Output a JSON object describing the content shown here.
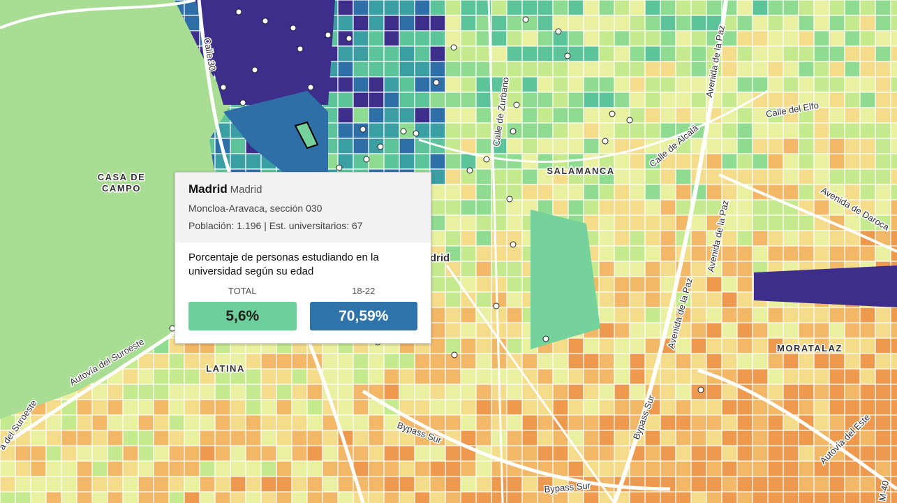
{
  "map": {
    "labels": {
      "calle_30": "Calle 30",
      "casa_de_campo": [
        "CASA DE",
        "CAMPO"
      ],
      "salamanca": "SALAMANCA",
      "latina": "LATINA",
      "moratalaz": "MORATALAZ",
      "madrid": "Madrid",
      "zurbano": "Calle de Zurbano",
      "elfo": "Calle del Elfo",
      "alcala": "Calle de Alcalá",
      "paz": [
        "Avenida de la Paz",
        "Avenida de la Paz",
        "Avenida de la Paz"
      ],
      "daroca": "Avenida de Daroca",
      "suroeste": [
        "Autovía del Suroeste",
        "a del Suroeste"
      ],
      "bypass": [
        "Bypass Sur",
        "Bypass Sur",
        "Bypass Sur"
      ],
      "este": "Autovía del Este",
      "m40": "M-40"
    }
  },
  "tooltip": {
    "municipality": "Madrid",
    "province": "Madrid",
    "section": "Moncloa-Aravaca, sección 030",
    "population": "Población: 1.196 | Est. universitarios: 67",
    "question": "Porcentaje de personas estudiando en la universidad según su edad",
    "total_label": "TOTAL",
    "age_label": "18-22",
    "total_value": "5,6%",
    "age_value": "70,59%"
  }
}
